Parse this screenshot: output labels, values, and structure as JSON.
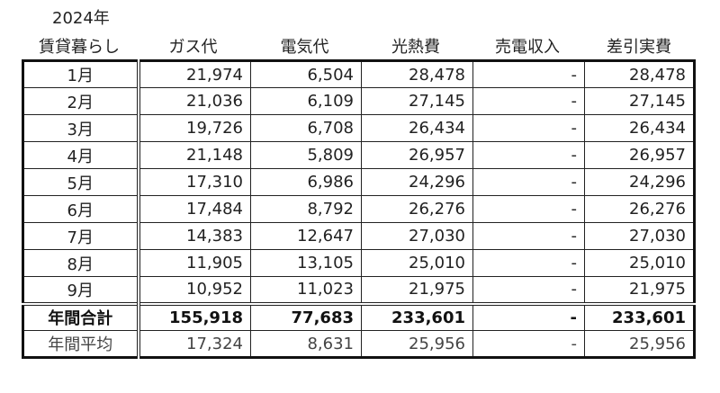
{
  "year_label": "2024年",
  "headers": [
    "賃貸暮らし",
    "ガス代",
    "電気代",
    "光熱費",
    "売電収入",
    "差引実費"
  ],
  "rows": [
    {
      "month": "1月",
      "gas": "21,974",
      "elec": "6,504",
      "util": "28,478",
      "sell": "-",
      "net": "28,478"
    },
    {
      "month": "2月",
      "gas": "21,036",
      "elec": "6,109",
      "util": "27,145",
      "sell": "-",
      "net": "27,145"
    },
    {
      "month": "3月",
      "gas": "19,726",
      "elec": "6,708",
      "util": "26,434",
      "sell": "-",
      "net": "26,434"
    },
    {
      "month": "4月",
      "gas": "21,148",
      "elec": "5,809",
      "util": "26,957",
      "sell": "-",
      "net": "26,957"
    },
    {
      "month": "5月",
      "gas": "17,310",
      "elec": "6,986",
      "util": "24,296",
      "sell": "-",
      "net": "24,296"
    },
    {
      "month": "6月",
      "gas": "17,484",
      "elec": "8,792",
      "util": "26,276",
      "sell": "-",
      "net": "26,276"
    },
    {
      "month": "7月",
      "gas": "14,383",
      "elec": "12,647",
      "util": "27,030",
      "sell": "-",
      "net": "27,030"
    },
    {
      "month": "8月",
      "gas": "11,905",
      "elec": "13,105",
      "util": "25,010",
      "sell": "-",
      "net": "25,010"
    },
    {
      "month": "9月",
      "gas": "10,952",
      "elec": "11,023",
      "util": "21,975",
      "sell": "-",
      "net": "21,975"
    }
  ],
  "total": {
    "month": "年間合計",
    "gas": "155,918",
    "elec": "77,683",
    "util": "233,601",
    "sell": "-",
    "net": "233,601"
  },
  "average": {
    "month": "年間平均",
    "gas": "17,324",
    "elec": "8,631",
    "util": "25,956",
    "sell": "-",
    "net": "25,956"
  }
}
